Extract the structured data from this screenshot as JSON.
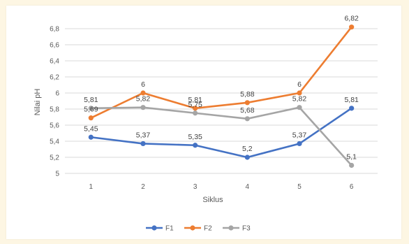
{
  "chart_data": {
    "type": "line",
    "xlabel": "Siklus",
    "ylabel": "Nilai pH",
    "categories": [
      "1",
      "2",
      "3",
      "4",
      "5",
      "6"
    ],
    "yticks": [
      "5",
      "5,2",
      "5,4",
      "5,6",
      "5,8",
      "6",
      "6,2",
      "6,4",
      "6,6",
      "6,8"
    ],
    "ylim": [
      5,
      6.8
    ],
    "grid": true,
    "legend_position": "bottom",
    "series": [
      {
        "name": "F1",
        "color": "#4472c4",
        "values": [
          5.45,
          5.37,
          5.35,
          5.2,
          5.37,
          5.81
        ],
        "labels": [
          "5,45",
          "5,37",
          "5,35",
          "5,2",
          "5,37",
          "5,81"
        ]
      },
      {
        "name": "F2",
        "color": "#ed7d31",
        "values": [
          5.69,
          6,
          5.81,
          5.88,
          6,
          6.82
        ],
        "labels": [
          "5,69",
          "6",
          "5,81",
          "5,88",
          "6",
          "6,82"
        ]
      },
      {
        "name": "F3",
        "color": "#a5a5a5",
        "values": [
          5.81,
          5.82,
          5.75,
          5.68,
          5.82,
          5.1
        ],
        "labels": [
          "5,81",
          "5,82",
          "5,75",
          "5,68",
          "5,82",
          "5,1"
        ]
      }
    ]
  }
}
